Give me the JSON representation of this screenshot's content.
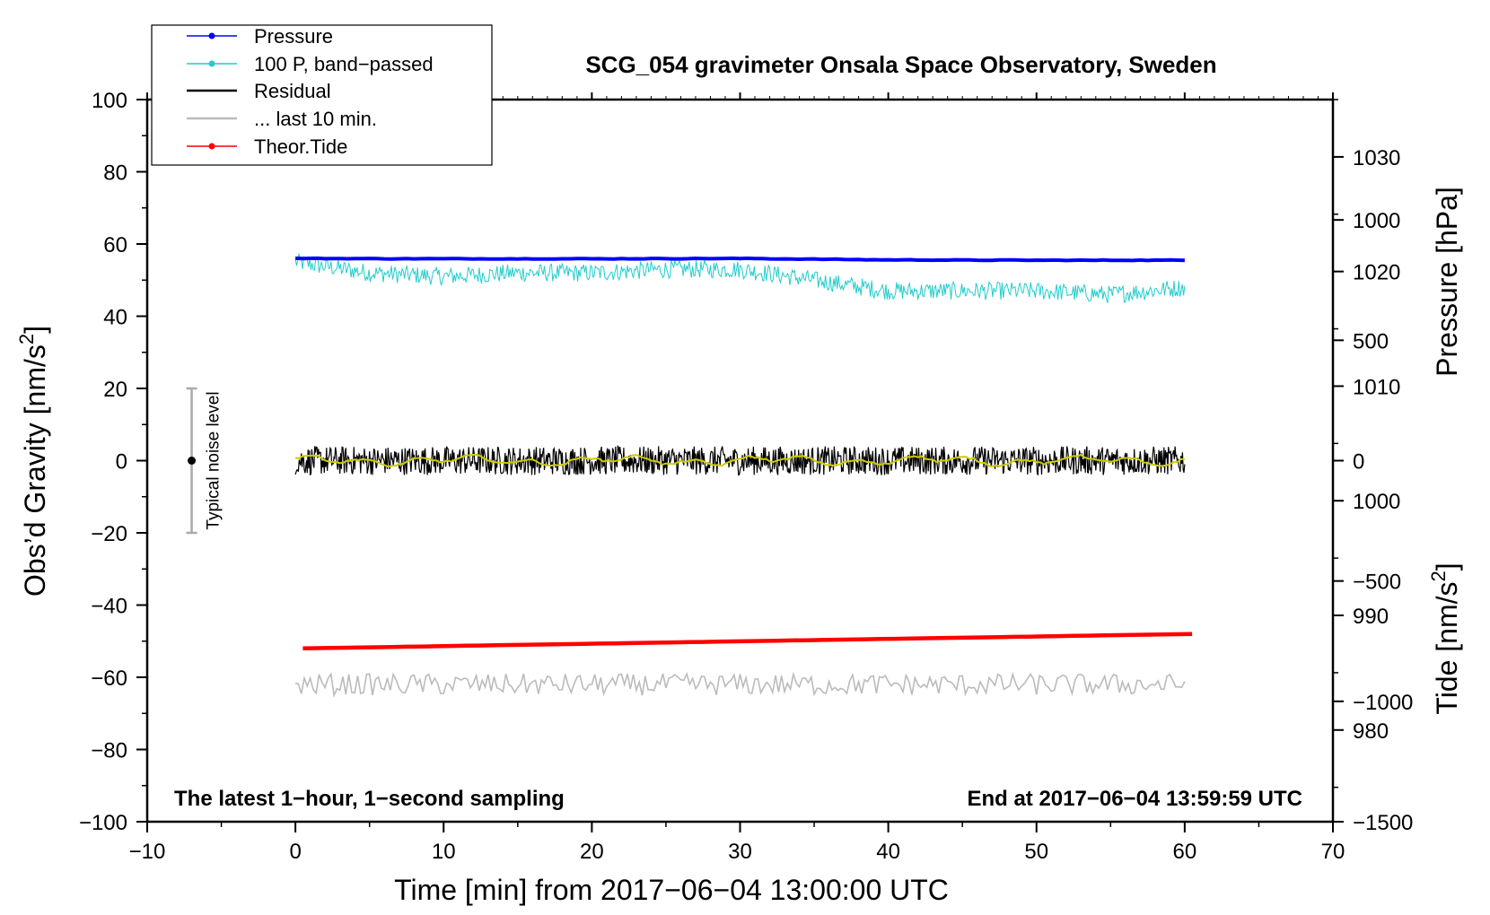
{
  "chart_data": {
    "type": "line",
    "title": "SCG_054 gravimeter Onsala Space Observatory, Sweden",
    "xlabel": "Time [min] from 2017−06−04 13:00:00 UTC",
    "ylabel_prefix": "Obs’d Gravity [nm/s",
    "ylabel_sup": "2",
    "ylabel_suffix": "]",
    "xlim": [
      -10,
      70
    ],
    "ylim": [
      -100,
      100
    ],
    "xticks": [
      -10,
      0,
      10,
      20,
      30,
      40,
      50,
      60,
      70
    ],
    "xtick_labels": [
      "−10",
      "0",
      "10",
      "20",
      "30",
      "40",
      "50",
      "60",
      "70"
    ],
    "yticks": [
      100,
      80,
      60,
      40,
      20,
      0,
      -20,
      -40,
      -60,
      -80,
      -100
    ],
    "ytick_labels": [
      "100",
      "80",
      "60",
      "40",
      "20",
      "0",
      "−20",
      "−40",
      "−60",
      "−80",
      "−100"
    ],
    "pressure_axis": {
      "label": "Pressure [hPa]",
      "lim": [
        972,
        1035
      ],
      "ticks": [
        980,
        990,
        1000,
        1010,
        1020,
        1030
      ],
      "tick_labels": [
        "980",
        "990",
        "1000",
        "1010",
        "1020",
        "1030"
      ]
    },
    "tide_axis": {
      "label_prefix": "Tide [nm/s",
      "label_sup": "2",
      "label_suffix": "]",
      "lim": [
        -1500,
        1500
      ],
      "ticks": [
        -1500,
        -1000,
        -500,
        0,
        500,
        1000
      ],
      "tick_labels": [
        "−1500",
        "−1000",
        "−500",
        "0",
        "500",
        "1000"
      ]
    },
    "series": [
      {
        "name": "Pressure",
        "color": "#0000ff",
        "kind": "line+dot",
        "x": [
          0,
          10,
          20,
          30,
          40,
          50,
          60
        ],
        "values": [
          56,
          55.9,
          55.9,
          56,
          55.6,
          55.5,
          55.5
        ]
      },
      {
        "name": "100 P, band−passed",
        "color": "#22cccc",
        "kind": "line+dot",
        "x": [
          0,
          5,
          10,
          15,
          20,
          25,
          30,
          35,
          40,
          45,
          50,
          55,
          60
        ],
        "values": [
          55,
          52,
          51,
          52,
          52,
          53,
          53,
          50,
          47,
          47,
          47,
          46,
          48
        ],
        "noise_amplitude": 2.5
      },
      {
        "name": "Residual",
        "color": "#000000",
        "kind": "line",
        "x": [
          0,
          60
        ],
        "values": [
          0,
          0
        ],
        "noise_amplitude": 4
      },
      {
        "name": "... last 10 min.",
        "color": "#bbbbbb",
        "kind": "line",
        "x": [
          0,
          60
        ],
        "values": [
          -62,
          -62
        ],
        "noise_amplitude": 3
      },
      {
        "name": "Theor.Tide",
        "color": "#ff0000",
        "kind": "line+dot",
        "x": [
          0.5,
          60.5
        ],
        "values": [
          -52,
          -48
        ]
      }
    ],
    "smoothed_residual_color": "#cccc00",
    "noise_bar": {
      "label": "Typical noise level",
      "x": -7,
      "center": 0,
      "low": -20,
      "high": 20
    },
    "footer_left": "The latest 1−hour, 1−second sampling",
    "footer_right": "End at 2017−06−04 13:59:59 UTC",
    "legend_position": "top-left"
  }
}
